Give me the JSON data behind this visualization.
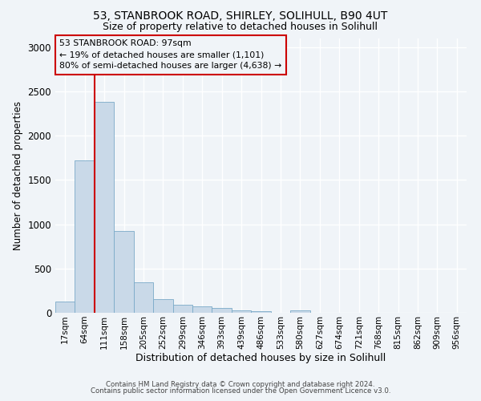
{
  "title_line1": "53, STANBROOK ROAD, SHIRLEY, SOLIHULL, B90 4UT",
  "title_line2": "Size of property relative to detached houses in Solihull",
  "xlabel": "Distribution of detached houses by size in Solihull",
  "ylabel": "Number of detached properties",
  "footer_line1": "Contains HM Land Registry data © Crown copyright and database right 2024.",
  "footer_line2": "Contains public sector information licensed under the Open Government Licence v3.0.",
  "annotation_line1": "53 STANBROOK ROAD: 97sqm",
  "annotation_line2": "← 19% of detached houses are smaller (1,101)",
  "annotation_line3": "80% of semi-detached houses are larger (4,638) →",
  "bar_labels": [
    "17sqm",
    "64sqm",
    "111sqm",
    "158sqm",
    "205sqm",
    "252sqm",
    "299sqm",
    "346sqm",
    "393sqm",
    "439sqm",
    "486sqm",
    "533sqm",
    "580sqm",
    "627sqm",
    "674sqm",
    "721sqm",
    "768sqm",
    "815sqm",
    "862sqm",
    "909sqm",
    "956sqm"
  ],
  "bar_values": [
    130,
    1720,
    2380,
    920,
    345,
    155,
    90,
    75,
    50,
    25,
    18,
    0,
    30,
    0,
    0,
    0,
    0,
    0,
    0,
    0,
    0
  ],
  "bar_color": "#c9d9e8",
  "bar_edge_color": "#7aaac8",
  "red_line_bar_index": 2,
  "annotation_box_color": "#cc0000",
  "ylim": [
    0,
    3100
  ],
  "yticks": [
    0,
    500,
    1000,
    1500,
    2000,
    2500,
    3000
  ],
  "bg_color": "#f0f4f8",
  "grid_color": "#ffffff"
}
